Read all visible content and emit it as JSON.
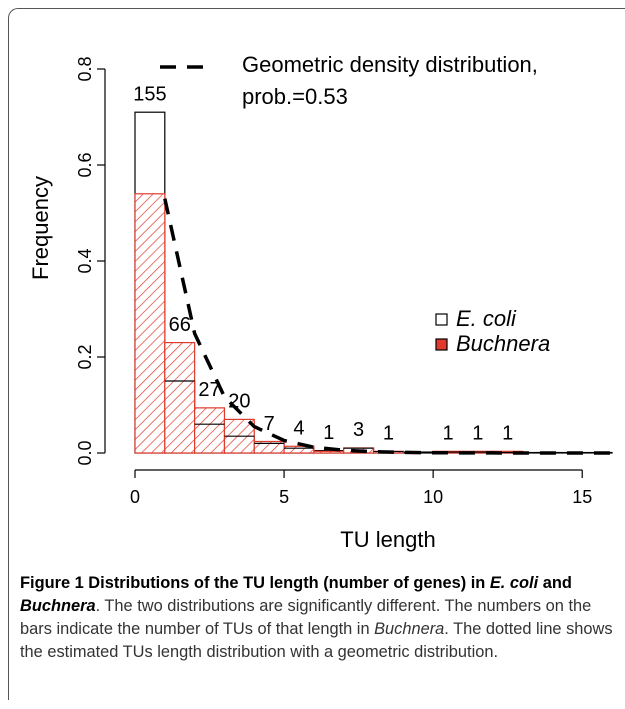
{
  "chart_data": {
    "type": "histogram",
    "x_label": "TU length",
    "y_label": "Frequency",
    "bins": [
      0,
      1,
      2,
      3,
      4,
      5,
      6,
      7,
      8,
      9,
      10,
      11,
      12,
      13,
      14,
      15,
      16
    ],
    "series": [
      {
        "name": "E. coli",
        "color": "#ffffff",
        "values": [
          0.71,
          0.15,
          0.06,
          0.035,
          0.02,
          0.01,
          0.005,
          0.01,
          0.003,
          0.002,
          0.002,
          0.002,
          0.001,
          0.001,
          0.001,
          0.001
        ]
      },
      {
        "name": "Buchnera",
        "color": "#e03a2c",
        "hatch": true,
        "values": [
          0.54,
          0.23,
          0.094,
          0.07,
          0.024,
          0.014,
          0.0035,
          0.0105,
          0.0035,
          0,
          0.0035,
          0.0035,
          0.0035,
          0,
          0,
          0
        ],
        "bar_labels": [
          155,
          66,
          27,
          20,
          7,
          4,
          1,
          3,
          1,
          null,
          1,
          1,
          1,
          null,
          null,
          null
        ]
      }
    ],
    "line": {
      "name_lines": [
        "Geometric density distribution,",
        "prob.=0.53"
      ],
      "color": "#000000",
      "dashed": true,
      "x": [
        1,
        2,
        3,
        4,
        5,
        6,
        7,
        8,
        9,
        10,
        11,
        12,
        13,
        14,
        15,
        16
      ],
      "values": [
        0.53,
        0.249,
        0.117,
        0.055,
        0.026,
        0.012,
        0.0057,
        0.0027,
        0.0013,
        0.0006,
        0.0003,
        0.00014,
        7e-05,
        3e-05,
        1e-05,
        7e-06
      ]
    },
    "xlim": [
      0,
      16.2
    ],
    "xticks": [
      0,
      5,
      10,
      15
    ],
    "ylim": [
      0,
      0.8
    ],
    "yticks": [
      {
        "value": 0,
        "label": "0.0"
      },
      {
        "value": 0.2,
        "label": "0.2"
      },
      {
        "value": 0.4,
        "label": "0.4"
      },
      {
        "value": 0.6,
        "label": "0.6"
      },
      {
        "value": 0.8,
        "label": "0.8"
      }
    ]
  },
  "caption": {
    "runs": [
      {
        "text": "Figure 1 Distributions of the TU length (number of genes) in ",
        "style": "bold"
      },
      {
        "text": "E. coli",
        "style": "bold-italic"
      },
      {
        "text": " and ",
        "style": "bold"
      },
      {
        "text": "Buchnera",
        "style": "bold-italic"
      },
      {
        "text": ". The two distributions are significantly different. The numbers on the bars indicate the number of TUs of that length in ",
        "style": "normal"
      },
      {
        "text": "Buchnera",
        "style": "italic"
      },
      {
        "text": ". The dotted line shows the estimated TUs length distribution with a geometric distribution.",
        "style": "normal"
      }
    ]
  }
}
